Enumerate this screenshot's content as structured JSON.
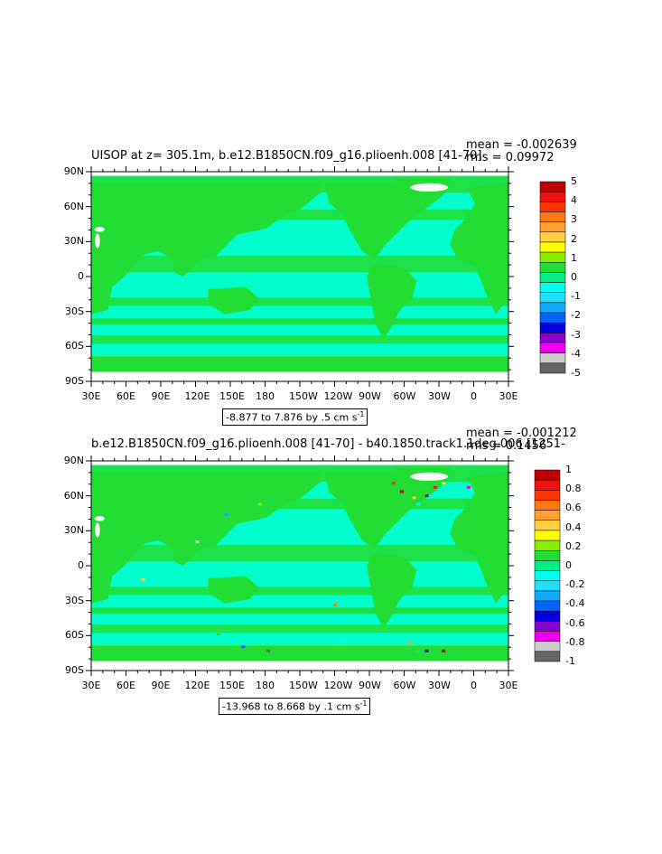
{
  "chart_data": [
    {
      "type": "heatmap",
      "title": "UISOP at z= 305.1m, b.e12.B1850CN.f09_g16.plioenh.008 [41-70]",
      "mean_label": "mean = -0.002639",
      "rms_label": "rms = 0.09972",
      "x_ticks": [
        "30E",
        "60E",
        "90E",
        "120E",
        "150E",
        "180",
        "150W",
        "120W",
        "90W",
        "60W",
        "30W",
        "0",
        "30E"
      ],
      "y_ticks": [
        "90N",
        "60N",
        "30N",
        "0",
        "30S",
        "60S",
        "90S"
      ],
      "range_label": "-8.877 to 7.876 by .5 cm s",
      "units_superscript": "-1",
      "colorbar_labels": [
        "5",
        "4",
        "3",
        "2",
        "1",
        "0",
        "-1",
        "-2",
        "-3",
        "-4",
        "-5"
      ],
      "colorbar_colors": [
        "#c00000",
        "#ee1111",
        "#ff3300",
        "#ff7711",
        "#ffa030",
        "#ffd040",
        "#ffff00",
        "#88ee00",
        "#22dd33",
        "#00ee88",
        "#00ffee",
        "#22ddff",
        "#11aaff",
        "#0066ff",
        "#0000dd",
        "#8800cc",
        "#ee00ee",
        "#cccccc",
        "#666666"
      ],
      "dominant_value": 0,
      "ocean_color": "#00ffcc"
    },
    {
      "type": "heatmap",
      "title": "b.e12.B1850CN.f09_g16.plioenh.008 [41-70] - b40.1850.track1.1deg.006 [1251-",
      "mean_label": "mean = -0.001212",
      "rms_label": "rms = 0.1456",
      "x_ticks": [
        "30E",
        "60E",
        "90E",
        "120E",
        "150E",
        "180",
        "150W",
        "120W",
        "90W",
        "60W",
        "30W",
        "0",
        "30E"
      ],
      "y_ticks": [
        "90N",
        "60N",
        "30N",
        "0",
        "30S",
        "60S",
        "90S"
      ],
      "range_label": "-13.968 to 8.668 by .1 cm s",
      "units_superscript": "-1",
      "colorbar_labels": [
        "1",
        "0.8",
        "0.6",
        "0.4",
        "0.2",
        "0",
        "-0.2",
        "-0.4",
        "-0.6",
        "-0.8",
        "-1"
      ],
      "colorbar_colors": [
        "#c00000",
        "#ee1111",
        "#ff3300",
        "#ff7711",
        "#ffa030",
        "#ffd040",
        "#ffff00",
        "#88ee00",
        "#22dd33",
        "#00ee88",
        "#00ffee",
        "#22ddff",
        "#11aaff",
        "#0066ff",
        "#0000dd",
        "#8800cc",
        "#ee00ee",
        "#cccccc",
        "#666666"
      ],
      "dominant_value": 0,
      "ocean_color": "#00ffcc"
    }
  ]
}
